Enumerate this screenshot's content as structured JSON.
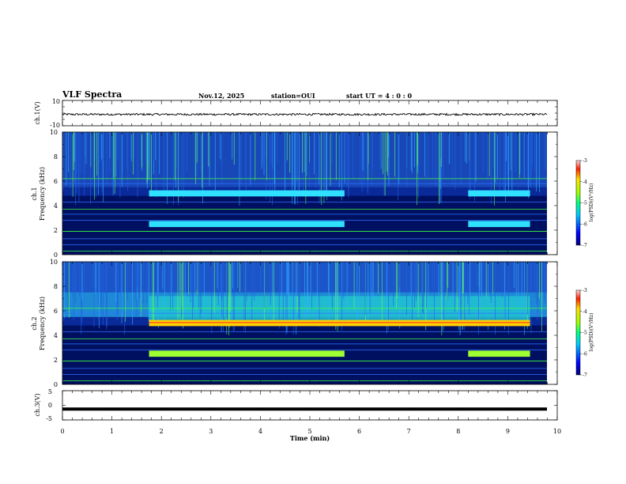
{
  "header": {
    "title": "VLF Spectra",
    "date": "Nov.12, 2025",
    "station": "station=OUI",
    "start": "start  UT =   4 : 0  : 0"
  },
  "chart_data": [
    {
      "type": "line",
      "name": "ch1-waveform",
      "ylabel": "ch.1(V)",
      "ylim": [
        -10,
        10
      ],
      "ytick_labels": [
        "10",
        "-10"
      ],
      "description_value": "noise band around -1 V"
    },
    {
      "type": "heatmap",
      "name": "ch1-spectrogram",
      "ylabel": "ch.1\nFrequency (kHz)",
      "ylabel_line1": "ch.1",
      "ylabel_line2": "Frequency (kHz)",
      "ylim": [
        0,
        10
      ],
      "yticks": [
        "0",
        "2",
        "4",
        "6",
        "8",
        "10"
      ],
      "xlim": [
        0,
        10
      ],
      "colorbar": {
        "label": "log(PSD)(V²/Hz)",
        "range": [
          -7,
          -3
        ],
        "ticks": [
          "-3",
          "-4",
          "-5",
          "-6",
          "-7"
        ]
      },
      "features": [
        {
          "label": "band",
          "t_start": 1.75,
          "t_end": 5.7,
          "f_khz": 5.0
        },
        {
          "label": "band",
          "t_start": 8.2,
          "t_end": 9.45,
          "f_khz": 5.0
        },
        {
          "label": "band",
          "t_start": 1.75,
          "t_end": 5.7,
          "f_khz": 2.5
        },
        {
          "label": "band",
          "t_start": 8.2,
          "t_end": 9.45,
          "f_khz": 2.5
        }
      ]
    },
    {
      "type": "heatmap",
      "name": "ch2-spectrogram",
      "ylabel_line1": "ch.2",
      "ylabel_line2": "Frequency (kHz)",
      "ylim": [
        0,
        10
      ],
      "yticks": [
        "0",
        "2",
        "4",
        "6",
        "8",
        "10"
      ],
      "xlim": [
        0,
        10
      ],
      "colorbar": {
        "label": "log(PSD)(V²/Hz)",
        "range": [
          -7,
          -3
        ],
        "ticks": [
          "-3",
          "-4",
          "-5",
          "-6",
          "-7"
        ]
      },
      "features": [
        {
          "label": "band",
          "t_start": 1.75,
          "t_end": 5.7,
          "f_khz": 5.0
        },
        {
          "label": "band",
          "t_start": 5.7,
          "t_end": 8.2,
          "f_khz": 5.0
        },
        {
          "label": "band",
          "t_start": 8.2,
          "t_end": 9.45,
          "f_khz": 5.0
        },
        {
          "label": "band",
          "t_start": 1.75,
          "t_end": 5.7,
          "f_khz": 2.5
        },
        {
          "label": "band",
          "t_start": 8.2,
          "t_end": 9.45,
          "f_khz": 2.5
        }
      ]
    },
    {
      "type": "line",
      "name": "ch3-waveform",
      "ylabel": "ch.3(V)",
      "ylim": [
        -5,
        5
      ],
      "ytick_labels": [
        "5",
        "0",
        "-5"
      ],
      "value": -1.3
    }
  ],
  "xaxis": {
    "label": "Time (min)",
    "xlim": [
      0,
      10
    ],
    "ticks": [
      "0",
      "1",
      "2",
      "3",
      "4",
      "5",
      "6",
      "7",
      "8",
      "9",
      "10"
    ]
  }
}
